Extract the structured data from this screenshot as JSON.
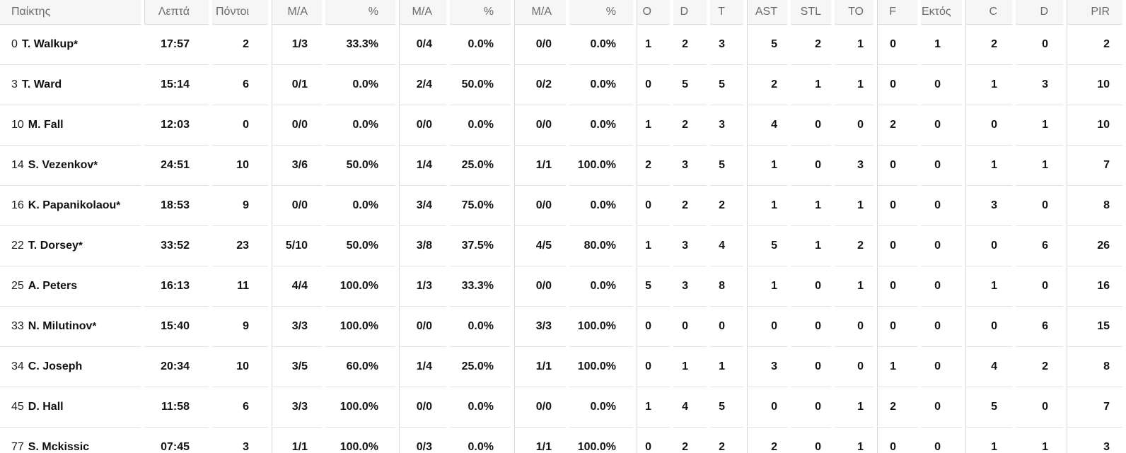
{
  "starter_mark": "*",
  "colors": {
    "header_bg": "#f6f6f6",
    "header_text": "#6b6b6b",
    "group_divider": "#d8d8d8",
    "row_border": "#e4e4e4",
    "cell_text": "#141414"
  },
  "columns": [
    {
      "key": "player",
      "label": "Παίκτης"
    },
    {
      "key": "min",
      "label": "Λεπτά"
    },
    {
      "key": "pts",
      "label": "Πόντοι"
    },
    {
      "key": "fg2",
      "label": "M/A"
    },
    {
      "key": "fg2pct",
      "label": "%"
    },
    {
      "key": "fg3",
      "label": "M/A"
    },
    {
      "key": "fg3pct",
      "label": "%"
    },
    {
      "key": "ft",
      "label": "M/A"
    },
    {
      "key": "ftpct",
      "label": "%"
    },
    {
      "key": "oreb",
      "label": "O"
    },
    {
      "key": "dreb",
      "label": "D"
    },
    {
      "key": "treb",
      "label": "T"
    },
    {
      "key": "ast",
      "label": "AST"
    },
    {
      "key": "stl",
      "label": "STL"
    },
    {
      "key": "to",
      "label": "TO"
    },
    {
      "key": "f",
      "label": "F"
    },
    {
      "key": "ektos",
      "label": "Εκτός"
    },
    {
      "key": "c",
      "label": "C"
    },
    {
      "key": "d",
      "label": "D"
    },
    {
      "key": "pir",
      "label": "PIR"
    }
  ],
  "players": [
    {
      "number": "0",
      "name": "T. Walkup",
      "starter": true,
      "min": "17:57",
      "pts": "2",
      "fg2": "1/3",
      "fg2pct": "33.3%",
      "fg3": "0/4",
      "fg3pct": "0.0%",
      "ft": "0/0",
      "ftpct": "0.0%",
      "oreb": "1",
      "dreb": "2",
      "treb": "3",
      "ast": "5",
      "stl": "2",
      "to": "1",
      "f": "0",
      "ektos": "1",
      "c": "2",
      "d": "0",
      "pir": "2"
    },
    {
      "number": "3",
      "name": "T. Ward",
      "starter": false,
      "min": "15:14",
      "pts": "6",
      "fg2": "0/1",
      "fg2pct": "0.0%",
      "fg3": "2/4",
      "fg3pct": "50.0%",
      "ft": "0/2",
      "ftpct": "0.0%",
      "oreb": "0",
      "dreb": "5",
      "treb": "5",
      "ast": "2",
      "stl": "1",
      "to": "1",
      "f": "0",
      "ektos": "0",
      "c": "1",
      "d": "3",
      "pir": "10"
    },
    {
      "number": "10",
      "name": "M. Fall",
      "starter": false,
      "min": "12:03",
      "pts": "0",
      "fg2": "0/0",
      "fg2pct": "0.0%",
      "fg3": "0/0",
      "fg3pct": "0.0%",
      "ft": "0/0",
      "ftpct": "0.0%",
      "oreb": "1",
      "dreb": "2",
      "treb": "3",
      "ast": "4",
      "stl": "0",
      "to": "0",
      "f": "2",
      "ektos": "0",
      "c": "0",
      "d": "1",
      "pir": "10"
    },
    {
      "number": "14",
      "name": "S. Vezenkov",
      "starter": true,
      "min": "24:51",
      "pts": "10",
      "fg2": "3/6",
      "fg2pct": "50.0%",
      "fg3": "1/4",
      "fg3pct": "25.0%",
      "ft": "1/1",
      "ftpct": "100.0%",
      "oreb": "2",
      "dreb": "3",
      "treb": "5",
      "ast": "1",
      "stl": "0",
      "to": "3",
      "f": "0",
      "ektos": "0",
      "c": "1",
      "d": "1",
      "pir": "7"
    },
    {
      "number": "16",
      "name": "K. Papanikolaou",
      "starter": true,
      "min": "18:53",
      "pts": "9",
      "fg2": "0/0",
      "fg2pct": "0.0%",
      "fg3": "3/4",
      "fg3pct": "75.0%",
      "ft": "0/0",
      "ftpct": "0.0%",
      "oreb": "0",
      "dreb": "2",
      "treb": "2",
      "ast": "1",
      "stl": "1",
      "to": "1",
      "f": "0",
      "ektos": "0",
      "c": "3",
      "d": "0",
      "pir": "8"
    },
    {
      "number": "22",
      "name": "T. Dorsey",
      "starter": true,
      "min": "33:52",
      "pts": "23",
      "fg2": "5/10",
      "fg2pct": "50.0%",
      "fg3": "3/8",
      "fg3pct": "37.5%",
      "ft": "4/5",
      "ftpct": "80.0%",
      "oreb": "1",
      "dreb": "3",
      "treb": "4",
      "ast": "5",
      "stl": "1",
      "to": "2",
      "f": "0",
      "ektos": "0",
      "c": "0",
      "d": "6",
      "pir": "26"
    },
    {
      "number": "25",
      "name": "A. Peters",
      "starter": false,
      "min": "16:13",
      "pts": "11",
      "fg2": "4/4",
      "fg2pct": "100.0%",
      "fg3": "1/3",
      "fg3pct": "33.3%",
      "ft": "0/0",
      "ftpct": "0.0%",
      "oreb": "5",
      "dreb": "3",
      "treb": "8",
      "ast": "1",
      "stl": "0",
      "to": "1",
      "f": "0",
      "ektos": "0",
      "c": "1",
      "d": "0",
      "pir": "16"
    },
    {
      "number": "33",
      "name": "N. Milutinov",
      "starter": true,
      "min": "15:40",
      "pts": "9",
      "fg2": "3/3",
      "fg2pct": "100.0%",
      "fg3": "0/0",
      "fg3pct": "0.0%",
      "ft": "3/3",
      "ftpct": "100.0%",
      "oreb": "0",
      "dreb": "0",
      "treb": "0",
      "ast": "0",
      "stl": "0",
      "to": "0",
      "f": "0",
      "ektos": "0",
      "c": "0",
      "d": "6",
      "pir": "15"
    },
    {
      "number": "34",
      "name": "C. Joseph",
      "starter": false,
      "min": "20:34",
      "pts": "10",
      "fg2": "3/5",
      "fg2pct": "60.0%",
      "fg3": "1/4",
      "fg3pct": "25.0%",
      "ft": "1/1",
      "ftpct": "100.0%",
      "oreb": "0",
      "dreb": "1",
      "treb": "1",
      "ast": "3",
      "stl": "0",
      "to": "0",
      "f": "1",
      "ektos": "0",
      "c": "4",
      "d": "2",
      "pir": "8"
    },
    {
      "number": "45",
      "name": "D. Hall",
      "starter": false,
      "min": "11:58",
      "pts": "6",
      "fg2": "3/3",
      "fg2pct": "100.0%",
      "fg3": "0/0",
      "fg3pct": "0.0%",
      "ft": "0/0",
      "ftpct": "0.0%",
      "oreb": "1",
      "dreb": "4",
      "treb": "5",
      "ast": "0",
      "stl": "0",
      "to": "1",
      "f": "2",
      "ektos": "0",
      "c": "5",
      "d": "0",
      "pir": "7"
    },
    {
      "number": "77",
      "name": "S. Mckissic",
      "starter": false,
      "min": "07:45",
      "pts": "3",
      "fg2": "1/1",
      "fg2pct": "100.0%",
      "fg3": "0/3",
      "fg3pct": "0.0%",
      "ft": "1/1",
      "ftpct": "100.0%",
      "oreb": "0",
      "dreb": "2",
      "treb": "2",
      "ast": "2",
      "stl": "0",
      "to": "1",
      "f": "0",
      "ektos": "0",
      "c": "1",
      "d": "1",
      "pir": "3"
    }
  ]
}
